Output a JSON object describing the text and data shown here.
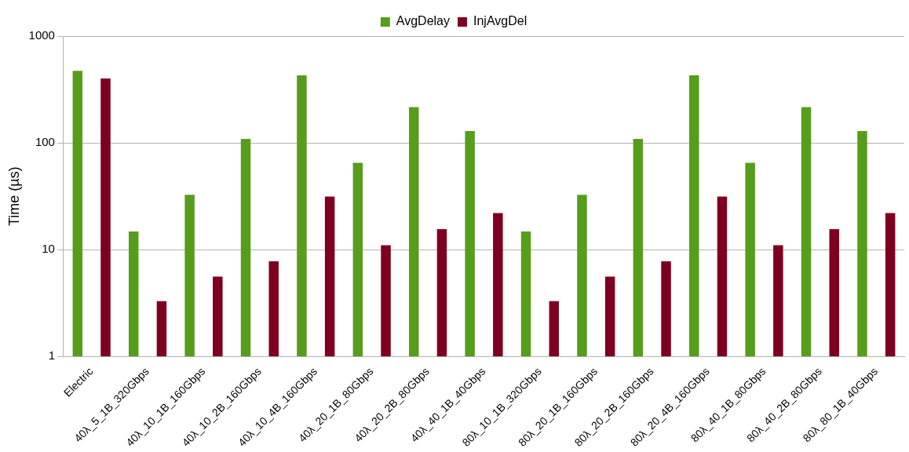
{
  "chart_data": {
    "type": "bar",
    "ylabel": "Time (µs)",
    "log": true,
    "grid": "y",
    "legend": "top",
    "ylim": [
      1,
      1000
    ],
    "yticks": [
      1,
      10,
      100,
      1000
    ],
    "categories": [
      "Electric",
      "40λ_5_1B_320Gbps",
      "40λ_10_1B_160Gbps",
      "40λ_10_2B_160Gbps",
      "40λ_10_4B_160Gbps",
      "40λ_20_1B_80Gbps",
      "40λ_20_2B_80Gbps",
      "40λ_40_1B_40Gbps",
      "80λ_10_1B_320Gbps",
      "80λ_20_1B_160Gbps",
      "80λ_20_2B_160Gbps",
      "80λ_20_4B_160Gbps",
      "80λ_40_1B_80Gbps",
      "80λ_40_2B_80Gbps",
      "80λ_80_1B_40Gbps"
    ],
    "series": [
      {
        "name": "AvgDelay",
        "color": "#579d1c",
        "values": [
          474,
          14.8,
          32.6,
          109,
          430,
          65,
          216,
          129,
          14.8,
          32.6,
          109,
          430,
          65,
          216,
          129
        ]
      },
      {
        "name": "InjAvgDel",
        "color": "#7e0021",
        "values": [
          401,
          3.3,
          5.6,
          7.8,
          31.5,
          11,
          15.6,
          22,
          3.3,
          5.6,
          7.8,
          31.5,
          11,
          15.6,
          22
        ]
      }
    ]
  }
}
